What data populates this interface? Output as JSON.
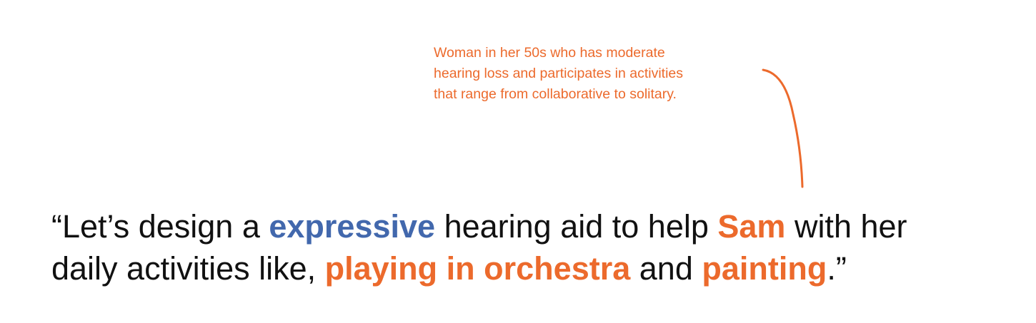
{
  "annotation": {
    "lines": [
      "Woman in her 50s who has moderate",
      "hearing loss and participates in activities",
      "that range from collaborative to solitary."
    ]
  },
  "quote": {
    "line1": {
      "open": "“Let’s design a ",
      "expressive": "expressive",
      "middle": " hearing aid to help ",
      "name": "Sam",
      "tail": " with her"
    },
    "line2": {
      "lead": "daily activities like, ",
      "activity1": "playing in orchestra",
      "and": " and ",
      "activity2": "painting",
      "close": ".”"
    }
  },
  "colors": {
    "accent_orange": "#ec6a2c",
    "accent_blue": "#4268ad",
    "text": "#111111"
  }
}
